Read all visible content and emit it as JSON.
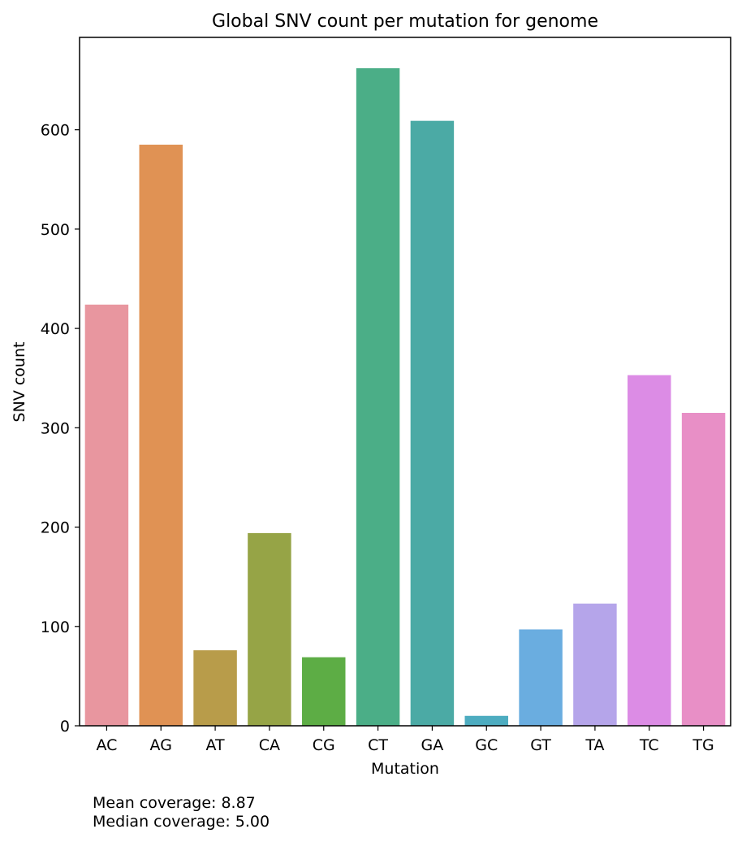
{
  "chart_data": {
    "type": "bar",
    "title": "Global SNV count per mutation for genome",
    "xlabel": "Mutation",
    "ylabel": "SNV count",
    "categories": [
      "AC",
      "AG",
      "AT",
      "CA",
      "CG",
      "CT",
      "GA",
      "GC",
      "GT",
      "TA",
      "TC",
      "TG"
    ],
    "values": [
      424,
      585,
      76,
      194,
      69,
      662,
      609,
      10,
      97,
      123,
      353,
      315
    ],
    "colors": [
      "#E8969F",
      "#E09254",
      "#B89C4A",
      "#96A446",
      "#5DAD45",
      "#4BAE87",
      "#4BAAA5",
      "#4DACC0",
      "#6AADE0",
      "#B5A5EA",
      "#DC8CE5",
      "#E88FC6"
    ],
    "ylim": [
      0,
      693
    ],
    "yticks": [
      0,
      100,
      200,
      300,
      400,
      500,
      600
    ],
    "grid": false,
    "legend": "none"
  },
  "notes": {
    "mean_coverage": "Mean coverage: 8.87",
    "median_coverage": "Median coverage: 5.00"
  }
}
